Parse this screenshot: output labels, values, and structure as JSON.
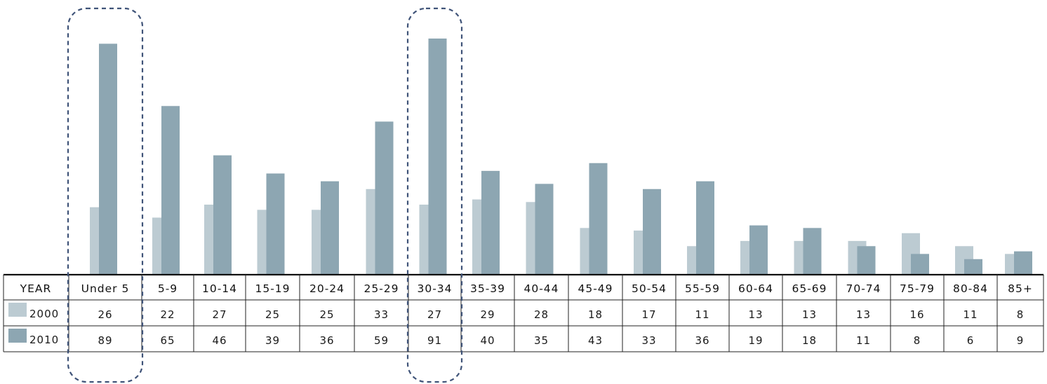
{
  "colors": {
    "series_2000": "#bccbd2",
    "series_2010": "#8da6b2",
    "highlight_border": "#3f5378",
    "table_border": "#222222",
    "axis_line": "#111111"
  },
  "chart_data": {
    "type": "bar",
    "categories": [
      "Under 5",
      "5-9",
      "10-14",
      "15-19",
      "20-24",
      "25-29",
      "30-34",
      "35-39",
      "40-44",
      "45-49",
      "50-54",
      "55-59",
      "60-64",
      "65-69",
      "70-74",
      "75-79",
      "80-84",
      "85+"
    ],
    "series": [
      {
        "name": "2000",
        "values": [
          26,
          22,
          27,
          25,
          25,
          33,
          27,
          29,
          28,
          18,
          17,
          11,
          13,
          13,
          13,
          16,
          11,
          8
        ]
      },
      {
        "name": "2010",
        "values": [
          89,
          65,
          46,
          39,
          36,
          59,
          91,
          40,
          35,
          43,
          33,
          36,
          19,
          18,
          11,
          8,
          6,
          9
        ]
      }
    ],
    "row_header": "YEAR",
    "highlighted_categories": [
      "Under 5",
      "30-34"
    ],
    "grid": false,
    "ylim": [
      0,
      91
    ],
    "legend": "data table rows"
  }
}
